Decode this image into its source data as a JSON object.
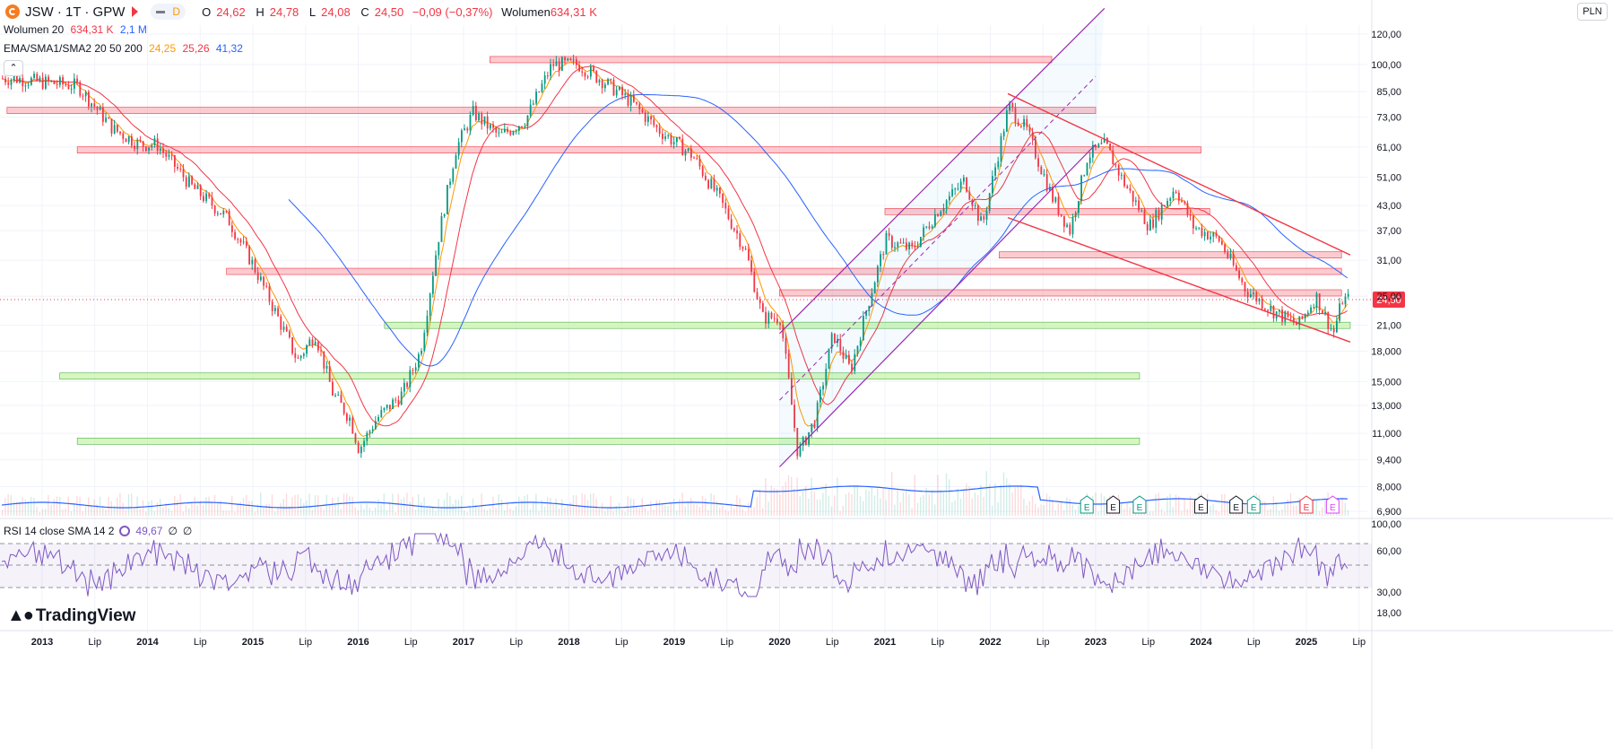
{
  "header": {
    "symbol": "JSW · 1T · GPW",
    "interval_badge": "D",
    "ohlc": {
      "o_label": "O",
      "o": "24,62",
      "h_label": "H",
      "h": "24,78",
      "l_label": "L",
      "l": "24,08",
      "c_label": "C",
      "c": "24,50",
      "change": "−0,09 (−0,37%)",
      "vol_label": "Wolumen",
      "vol": "634,31 K"
    },
    "currency": "PLN"
  },
  "indicators": {
    "volume": {
      "label": "Wolumen 20",
      "v1": "634,31 K",
      "v2": "2,1 M"
    },
    "ema": {
      "label": "EMA/SMA1/SMA2 20 50 200",
      "v1": "24,25",
      "v2": "25,26",
      "v3": "41,32"
    },
    "rsi": {
      "label": "RSI 14 close SMA 14 2",
      "v1": "49,67",
      "v2": "∅",
      "v3": "∅"
    }
  },
  "branding": {
    "name": "TradingView"
  },
  "colors": {
    "up": "#089981",
    "down": "#f23645",
    "ema20": "#ff9800",
    "sma50": "#f23645",
    "sma200": "#2962ff",
    "rsi": "#7e57c2",
    "support": "#b7f08b",
    "resistance": "#f7a1a9",
    "channel": "#9c27b0"
  },
  "chart_data": {
    "type": "candlestick",
    "symbol": "JSW",
    "price_axis": {
      "scale": "log",
      "ticks": [
        "120,00",
        "100,00",
        "85,00",
        "73,00",
        "61,00",
        "51,00",
        "43,00",
        "37,00",
        "31,00",
        "25,00",
        "21,00",
        "18,000",
        "15,000",
        "13,000",
        "11,000",
        "9,400",
        "8,000",
        "6,900"
      ],
      "tick_values": [
        120,
        100,
        85,
        73,
        61,
        51,
        43,
        37,
        31,
        25,
        21,
        18,
        15,
        13,
        11,
        9.4,
        8,
        6.9
      ],
      "last_price": "24,50"
    },
    "time_axis": [
      "2013",
      "Lip",
      "2014",
      "Lip",
      "2015",
      "Lip",
      "2016",
      "Lip",
      "2017",
      "Lip",
      "2018",
      "Lip",
      "2019",
      "Lip",
      "2020",
      "Lip",
      "2021",
      "Lip",
      "2022",
      "Lip",
      "2023",
      "Lip",
      "2024",
      "Lip",
      "2025",
      "Lip"
    ],
    "price_path": [
      [
        "2012-10",
        92
      ],
      [
        "2013-01",
        90
      ],
      [
        "2013-05",
        88
      ],
      [
        "2013-09",
        68
      ],
      [
        "2013-12",
        62
      ],
      [
        "2014-02",
        62
      ],
      [
        "2014-06",
        48
      ],
      [
        "2014-10",
        40
      ],
      [
        "2015-01",
        30
      ],
      [
        "2015-03",
        24
      ],
      [
        "2015-06",
        17
      ],
      [
        "2015-08",
        20
      ],
      [
        "2015-10",
        14
      ],
      [
        "2015-12",
        12
      ],
      [
        "2016-01",
        10
      ],
      [
        "2016-03",
        12
      ],
      [
        "2016-06",
        14
      ],
      [
        "2016-08",
        18
      ],
      [
        "2016-10",
        35
      ],
      [
        "2016-12",
        60
      ],
      [
        "2017-02",
        75
      ],
      [
        "2017-05",
        65
      ],
      [
        "2017-08",
        72
      ],
      [
        "2017-11",
        100
      ],
      [
        "2018-02",
        100
      ],
      [
        "2018-05",
        90
      ],
      [
        "2018-08",
        80
      ],
      [
        "2018-11",
        68
      ],
      [
        "2019-03",
        58
      ],
      [
        "2019-06",
        45
      ],
      [
        "2019-09",
        33
      ],
      [
        "2019-11",
        22
      ],
      [
        "2020-01",
        22
      ],
      [
        "2020-03",
        9.7
      ],
      [
        "2020-05",
        12
      ],
      [
        "2020-07",
        20
      ],
      [
        "2020-09",
        16
      ],
      [
        "2020-11",
        24
      ],
      [
        "2021-01",
        35
      ],
      [
        "2021-04",
        33
      ],
      [
        "2021-07",
        42
      ],
      [
        "2021-10",
        50
      ],
      [
        "2021-12",
        38
      ],
      [
        "2022-03",
        78
      ],
      [
        "2022-05",
        68
      ],
      [
        "2022-08",
        45
      ],
      [
        "2022-10",
        37
      ],
      [
        "2022-12",
        58
      ],
      [
        "2023-02",
        62
      ],
      [
        "2023-04",
        50
      ],
      [
        "2023-07",
        38
      ],
      [
        "2023-10",
        48
      ],
      [
        "2023-12",
        38
      ],
      [
        "2024-03",
        35
      ],
      [
        "2024-06",
        26
      ],
      [
        "2024-09",
        23
      ],
      [
        "2024-12",
        21
      ],
      [
        "2025-02",
        25
      ],
      [
        "2025-04",
        20
      ],
      [
        "2025-05",
        24.5
      ]
    ],
    "support_zones": [
      {
        "from": "2016-04",
        "to": "2025-06",
        "price": 21
      },
      {
        "from": "2013-03",
        "to": "2023-06",
        "price": 15.5
      },
      {
        "from": "2013-05",
        "to": "2023-06",
        "price": 10.5
      }
    ],
    "resistance_zones": [
      {
        "from": "2017-04",
        "to": "2022-08",
        "price": 103
      },
      {
        "from": "2012-09",
        "to": "2023-01",
        "price": 76
      },
      {
        "from": "2013-05",
        "to": "2024-01",
        "price": 60
      },
      {
        "from": "2021-01",
        "to": "2024-02",
        "price": 41.5
      },
      {
        "from": "2022-02",
        "to": "2025-05",
        "price": 32
      },
      {
        "from": "2014-10",
        "to": "2025-05",
        "price": 29
      },
      {
        "from": "2020-01",
        "to": "2025-05",
        "price": 25.5
      }
    ],
    "channel_up": {
      "lower_from": [
        "2020-01",
        9.0
      ],
      "lower_to": [
        "2023-01",
        62
      ],
      "upper_from": [
        "2020-01",
        20
      ],
      "upper_to": [
        "2023-02",
        140
      ]
    },
    "channel_down": {
      "upper_from": [
        "2022-03",
        84
      ],
      "upper_to": [
        "2025-06",
        32
      ],
      "lower_from": [
        "2022-03",
        40
      ],
      "lower_to": [
        "2025-06",
        19
      ]
    },
    "rsi_levels": [
      70,
      50,
      30
    ],
    "rsi_axis_ticks": [
      "100,00",
      "60,00",
      "30,00",
      "18,00"
    ],
    "rsi_axis_values": [
      100,
      60,
      30,
      18
    ],
    "earnings_markers": [
      {
        "date": "2022-12",
        "kind": "up"
      },
      {
        "date": "2023-03",
        "kind": "neutral"
      },
      {
        "date": "2023-06",
        "kind": "up"
      },
      {
        "date": "2024-01",
        "kind": "neutral"
      },
      {
        "date": "2024-05",
        "kind": "neutral"
      },
      {
        "date": "2024-07",
        "kind": "up"
      },
      {
        "date": "2025-01",
        "kind": "down"
      },
      {
        "date": "2025-04",
        "kind": "future"
      }
    ]
  }
}
